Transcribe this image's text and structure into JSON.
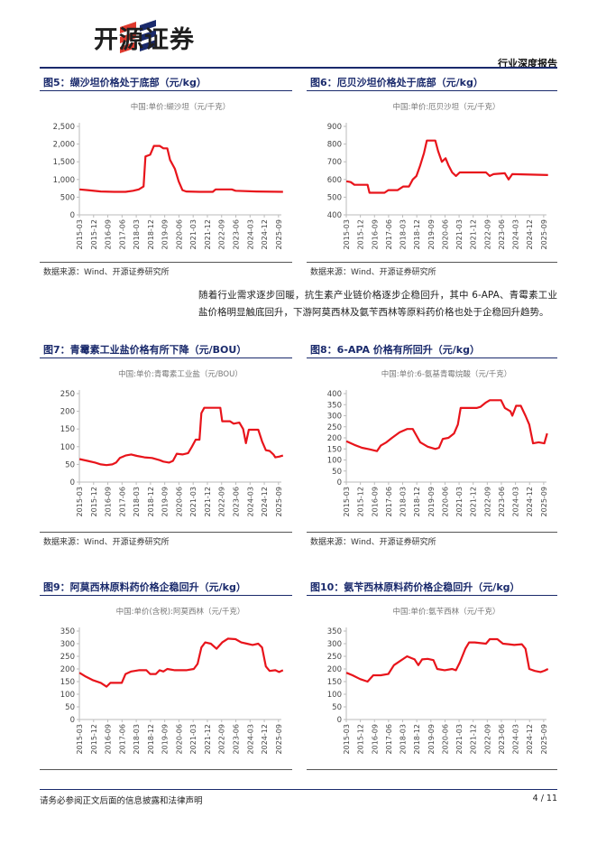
{
  "header": {
    "brand_name": "开源证券",
    "report_type": "行业深度报告"
  },
  "paragraph": "随着行业需求逐步回暖，抗生素产业链价格逐步企稳回升，其中 6-APA、青霉素工业盐价格明显触底回升，下游阿莫西林及氨苄西林等原料药价格也处于企稳回升趋势。",
  "footer": {
    "disclaimer": "请务必参阅正文后面的信息披露和法律声明",
    "page": "4 / 11"
  },
  "accent_colors": {
    "line": "#e8141b",
    "title": "#1a2a6c"
  },
  "chart_data": [
    {
      "id": "fig5",
      "type": "line",
      "title": "图5：缬沙坦价格处于底部（元/kg）",
      "subtitle": "中国:单价:缬沙坦（元/千克）",
      "source": "数据来源：Wind、开源证券研究所",
      "x": [
        "2015-03",
        "2015-12",
        "2016-09",
        "2017-06",
        "2018-03",
        "2018-12",
        "2019-09",
        "2020-06",
        "2021-03",
        "2021-12",
        "2022-09",
        "2023-06",
        "2024-03",
        "2024-12",
        "2025-09"
      ],
      "yticks": [
        "2,500",
        "2,000",
        "1,500",
        "1,000",
        "500",
        "0"
      ],
      "ylim": [
        0,
        2500
      ],
      "points": [
        [
          2015.17,
          720
        ],
        [
          2015.6,
          700
        ],
        [
          2016.3,
          660
        ],
        [
          2017.0,
          650
        ],
        [
          2017.6,
          650
        ],
        [
          2018.0,
          680
        ],
        [
          2018.3,
          720
        ],
        [
          2018.55,
          800
        ],
        [
          2018.65,
          1650
        ],
        [
          2018.9,
          1700
        ],
        [
          2019.1,
          1950
        ],
        [
          2019.4,
          1950
        ],
        [
          2019.6,
          1880
        ],
        [
          2019.8,
          1880
        ],
        [
          2019.95,
          1550
        ],
        [
          2020.2,
          1300
        ],
        [
          2020.4,
          950
        ],
        [
          2020.6,
          700
        ],
        [
          2020.8,
          660
        ],
        [
          2021.5,
          650
        ],
        [
          2022.2,
          650
        ],
        [
          2022.35,
          720
        ],
        [
          2023.2,
          720
        ],
        [
          2023.4,
          680
        ],
        [
          2024.5,
          660
        ],
        [
          2025.9,
          650
        ]
      ]
    },
    {
      "id": "fig6",
      "type": "line",
      "title": "图6：厄贝沙坦价格处于底部（元/kg）",
      "subtitle": "中国:单价:厄贝沙坦（元/千克）",
      "source": "数据来源：Wind、开源证券研究所",
      "x": [
        "2015-03",
        "2015-12",
        "2016-09",
        "2017-06",
        "2018-03",
        "2018-12",
        "2019-09",
        "2020-06",
        "2021-03",
        "2021-12",
        "2022-09",
        "2023-06",
        "2024-03",
        "2024-12",
        "2025-09"
      ],
      "yticks": [
        "900",
        "800",
        "700",
        "600",
        "500",
        "400"
      ],
      "ylim": [
        400,
        900
      ],
      "points": [
        [
          2015.17,
          590
        ],
        [
          2015.4,
          585
        ],
        [
          2015.6,
          570
        ],
        [
          2016.3,
          570
        ],
        [
          2016.4,
          525
        ],
        [
          2017.2,
          525
        ],
        [
          2017.4,
          540
        ],
        [
          2017.9,
          540
        ],
        [
          2018.2,
          560
        ],
        [
          2018.5,
          560
        ],
        [
          2018.7,
          600
        ],
        [
          2018.9,
          620
        ],
        [
          2019.1,
          680
        ],
        [
          2019.3,
          750
        ],
        [
          2019.45,
          820
        ],
        [
          2019.9,
          820
        ],
        [
          2020.05,
          760
        ],
        [
          2020.25,
          700
        ],
        [
          2020.45,
          720
        ],
        [
          2020.6,
          680
        ],
        [
          2020.8,
          640
        ],
        [
          2021.0,
          620
        ],
        [
          2021.2,
          640
        ],
        [
          2022.6,
          640
        ],
        [
          2022.8,
          620
        ],
        [
          2023.0,
          630
        ],
        [
          2023.6,
          635
        ],
        [
          2023.8,
          600
        ],
        [
          2024.0,
          630
        ],
        [
          2025.9,
          625
        ]
      ]
    },
    {
      "id": "fig7",
      "type": "line",
      "title": "图7：青霉素工业盐价格有所下降（元/BOU）",
      "subtitle": "中国:单价:青霉素工业盐（元/BOU）",
      "source": "数据来源：Wind、开源证券研究所",
      "x": [
        "2015-03",
        "2015-12",
        "2016-09",
        "2017-06",
        "2018-03",
        "2018-12",
        "2019-09",
        "2020-06",
        "2021-03",
        "2021-12",
        "2022-09",
        "2023-06",
        "2024-03",
        "2024-12",
        "2025-09"
      ],
      "yticks": [
        "250",
        "200",
        "150",
        "100",
        "50",
        "0"
      ],
      "ylim": [
        0,
        250
      ],
      "points": [
        [
          2015.17,
          65
        ],
        [
          2015.6,
          60
        ],
        [
          2016.0,
          55
        ],
        [
          2016.3,
          50
        ],
        [
          2016.6,
          48
        ],
        [
          2016.9,
          50
        ],
        [
          2017.1,
          55
        ],
        [
          2017.3,
          68
        ],
        [
          2017.6,
          75
        ],
        [
          2017.9,
          78
        ],
        [
          2018.2,
          74
        ],
        [
          2018.6,
          70
        ],
        [
          2019.0,
          68
        ],
        [
          2019.4,
          62
        ],
        [
          2019.6,
          58
        ],
        [
          2019.9,
          55
        ],
        [
          2020.1,
          60
        ],
        [
          2020.3,
          80
        ],
        [
          2020.6,
          78
        ],
        [
          2020.9,
          82
        ],
        [
          2021.1,
          100
        ],
        [
          2021.3,
          120
        ],
        [
          2021.5,
          120
        ],
        [
          2021.6,
          195
        ],
        [
          2021.75,
          210
        ],
        [
          2022.6,
          210
        ],
        [
          2022.7,
          172
        ],
        [
          2023.1,
          172
        ],
        [
          2023.3,
          165
        ],
        [
          2023.6,
          168
        ],
        [
          2023.8,
          150
        ],
        [
          2023.95,
          110
        ],
        [
          2024.1,
          148
        ],
        [
          2024.6,
          148
        ],
        [
          2024.8,
          115
        ],
        [
          2025.0,
          90
        ],
        [
          2025.2,
          88
        ],
        [
          2025.4,
          78
        ],
        [
          2025.5,
          70
        ],
        [
          2025.7,
          72
        ],
        [
          2025.9,
          75
        ]
      ]
    },
    {
      "id": "fig8",
      "type": "line",
      "title": "图8：6-APA 价格有所回升（元/kg）",
      "subtitle": "中国:单价:6-氨基青霉烷酸（元/千克）",
      "source": "数据来源：Wind、开源证券研究所",
      "x": [
        "2015-03",
        "2015-12",
        "2016-09",
        "2017-06",
        "2018-03",
        "2018-12",
        "2019-09",
        "2020-06",
        "2021-03",
        "2021-12",
        "2022-09",
        "2023-06",
        "2024-03",
        "2024-12",
        "2025-09"
      ],
      "yticks": [
        "400",
        "350",
        "300",
        "250",
        "200",
        "150",
        "100",
        "50",
        "0"
      ],
      "ylim": [
        0,
        400
      ],
      "points": [
        [
          2015.17,
          185
        ],
        [
          2015.6,
          168
        ],
        [
          2016.0,
          155
        ],
        [
          2016.4,
          148
        ],
        [
          2016.8,
          140
        ],
        [
          2017.0,
          165
        ],
        [
          2017.3,
          180
        ],
        [
          2017.6,
          200
        ],
        [
          2018.0,
          225
        ],
        [
          2018.4,
          240
        ],
        [
          2018.7,
          240
        ],
        [
          2018.9,
          210
        ],
        [
          2019.1,
          180
        ],
        [
          2019.5,
          160
        ],
        [
          2019.9,
          150
        ],
        [
          2020.1,
          155
        ],
        [
          2020.3,
          195
        ],
        [
          2020.6,
          200
        ],
        [
          2020.9,
          220
        ],
        [
          2021.1,
          260
        ],
        [
          2021.25,
          335
        ],
        [
          2021.5,
          335
        ],
        [
          2022.1,
          335
        ],
        [
          2022.3,
          340
        ],
        [
          2022.6,
          360
        ],
        [
          2022.8,
          370
        ],
        [
          2023.4,
          370
        ],
        [
          2023.6,
          335
        ],
        [
          2023.9,
          320
        ],
        [
          2024.0,
          300
        ],
        [
          2024.2,
          345
        ],
        [
          2024.45,
          345
        ],
        [
          2024.7,
          300
        ],
        [
          2024.9,
          260
        ],
        [
          2025.1,
          175
        ],
        [
          2025.4,
          180
        ],
        [
          2025.7,
          175
        ],
        [
          2025.85,
          220
        ]
      ]
    },
    {
      "id": "fig9",
      "type": "line",
      "title": "图9：阿莫西林原料药价格企稳回升（元/kg）",
      "subtitle": "中国:单价(含税):阿莫西林（元/千克）",
      "source": "",
      "x": [
        "2015-03",
        "2015-12",
        "2016-09",
        "2017-06",
        "2018-03",
        "2018-12",
        "2019-09",
        "2020-06",
        "2021-03",
        "2021-12",
        "2022-09",
        "2023-06",
        "2024-03",
        "2024-12",
        "2025-09"
      ],
      "yticks": [
        "350",
        "300",
        "250",
        "200",
        "150",
        "100",
        "50",
        "0"
      ],
      "ylim": [
        0,
        350
      ],
      "points": [
        [
          2015.17,
          185
        ],
        [
          2015.5,
          170
        ],
        [
          2015.9,
          155
        ],
        [
          2016.3,
          145
        ],
        [
          2016.6,
          130
        ],
        [
          2016.8,
          145
        ],
        [
          2017.4,
          145
        ],
        [
          2017.6,
          180
        ],
        [
          2017.9,
          190
        ],
        [
          2018.3,
          195
        ],
        [
          2018.7,
          195
        ],
        [
          2018.9,
          180
        ],
        [
          2019.2,
          180
        ],
        [
          2019.4,
          195
        ],
        [
          2019.6,
          190
        ],
        [
          2019.8,
          200
        ],
        [
          2020.2,
          195
        ],
        [
          2020.8,
          195
        ],
        [
          2021.2,
          200
        ],
        [
          2021.4,
          220
        ],
        [
          2021.6,
          285
        ],
        [
          2021.8,
          305
        ],
        [
          2022.1,
          300
        ],
        [
          2022.4,
          280
        ],
        [
          2022.7,
          305
        ],
        [
          2023.0,
          320
        ],
        [
          2023.4,
          318
        ],
        [
          2023.7,
          305
        ],
        [
          2024.0,
          300
        ],
        [
          2024.3,
          295
        ],
        [
          2024.6,
          300
        ],
        [
          2024.8,
          285
        ],
        [
          2025.0,
          210
        ],
        [
          2025.2,
          192
        ],
        [
          2025.5,
          195
        ],
        [
          2025.7,
          188
        ],
        [
          2025.9,
          195
        ]
      ]
    },
    {
      "id": "fig10",
      "type": "line",
      "title": "图10：氨苄西林原料药价格企稳回升（元/kg）",
      "subtitle": "中国:单价:氨苄西林（元/千克）",
      "source": "",
      "x": [
        "2015-03",
        "2015-12",
        "2016-09",
        "2017-06",
        "2018-03",
        "2018-12",
        "2019-09",
        "2020-06",
        "2021-03",
        "2021-12",
        "2022-09",
        "2023-06",
        "2024-03",
        "2024-12",
        "2025-09"
      ],
      "yticks": [
        "350",
        "300",
        "250",
        "200",
        "150",
        "100",
        "50",
        "0"
      ],
      "ylim": [
        0,
        350
      ],
      "points": [
        [
          2015.17,
          185
        ],
        [
          2015.5,
          175
        ],
        [
          2015.9,
          160
        ],
        [
          2016.3,
          150
        ],
        [
          2016.6,
          175
        ],
        [
          2017.0,
          175
        ],
        [
          2017.4,
          180
        ],
        [
          2017.7,
          215
        ],
        [
          2018.0,
          230
        ],
        [
          2018.4,
          250
        ],
        [
          2018.8,
          238
        ],
        [
          2019.0,
          215
        ],
        [
          2019.2,
          238
        ],
        [
          2019.5,
          240
        ],
        [
          2019.8,
          235
        ],
        [
          2020.0,
          200
        ],
        [
          2020.4,
          195
        ],
        [
          2020.8,
          200
        ],
        [
          2021.0,
          195
        ],
        [
          2021.2,
          225
        ],
        [
          2021.5,
          280
        ],
        [
          2021.7,
          305
        ],
        [
          2022.0,
          305
        ],
        [
          2022.6,
          300
        ],
        [
          2022.8,
          318
        ],
        [
          2023.2,
          318
        ],
        [
          2023.5,
          300
        ],
        [
          2023.8,
          298
        ],
        [
          2024.1,
          295
        ],
        [
          2024.5,
          298
        ],
        [
          2024.7,
          280
        ],
        [
          2024.9,
          200
        ],
        [
          2025.2,
          192
        ],
        [
          2025.5,
          188
        ],
        [
          2025.7,
          193
        ],
        [
          2025.9,
          200
        ]
      ]
    }
  ]
}
